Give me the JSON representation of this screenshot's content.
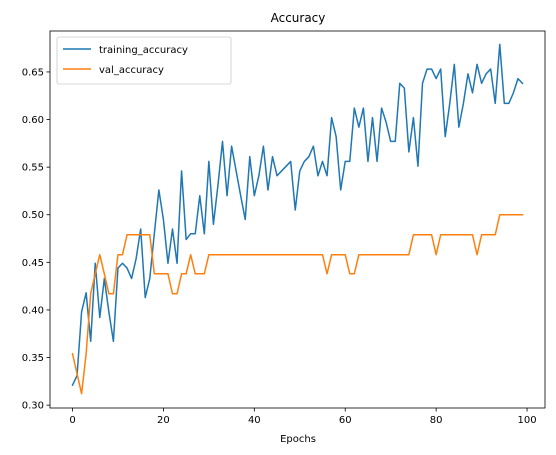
{
  "chart_data": {
    "type": "line",
    "title": "Accuracy",
    "xlabel": "Epochs",
    "ylabel": "",
    "xlim": [
      -4.95,
      103.95
    ],
    "ylim": [
      0.297,
      0.693
    ],
    "xticks": [
      0,
      20,
      40,
      60,
      80,
      100
    ],
    "xtick_labels": [
      "0",
      "20",
      "40",
      "60",
      "80",
      "100"
    ],
    "yticks": [
      0.3,
      0.35,
      0.4,
      0.45,
      0.5,
      0.55,
      0.6,
      0.65
    ],
    "ytick_labels": [
      "0.30",
      "0.35",
      "0.40",
      "0.45",
      "0.50",
      "0.55",
      "0.60",
      "0.65"
    ],
    "grid": false,
    "legend_position": "top-left",
    "series": [
      {
        "name": "training_accuracy",
        "color": "#1f77b4",
        "x": [
          0,
          1,
          2,
          3,
          4,
          5,
          6,
          7,
          8,
          9,
          10,
          11,
          12,
          13,
          14,
          15,
          16,
          17,
          18,
          19,
          20,
          21,
          22,
          23,
          24,
          25,
          26,
          27,
          28,
          29,
          30,
          31,
          32,
          33,
          34,
          35,
          36,
          37,
          38,
          39,
          40,
          41,
          42,
          43,
          44,
          45,
          46,
          47,
          48,
          49,
          50,
          51,
          52,
          53,
          54,
          55,
          56,
          57,
          58,
          59,
          60,
          61,
          62,
          63,
          64,
          65,
          66,
          67,
          68,
          69,
          70,
          71,
          72,
          73,
          74,
          75,
          76,
          77,
          78,
          79,
          80,
          81,
          82,
          83,
          84,
          85,
          86,
          87,
          88,
          89,
          90,
          91,
          92,
          93,
          94,
          95,
          96,
          97,
          98,
          99
        ],
        "values": [
          0.321,
          0.331,
          0.398,
          0.418,
          0.367,
          0.449,
          0.392,
          0.433,
          0.398,
          0.367,
          0.444,
          0.449,
          0.444,
          0.433,
          0.454,
          0.485,
          0.413,
          0.433,
          0.48,
          0.526,
          0.495,
          0.449,
          0.485,
          0.449,
          0.546,
          0.474,
          0.48,
          0.48,
          0.52,
          0.48,
          0.556,
          0.49,
          0.531,
          0.577,
          0.52,
          0.572,
          0.546,
          0.52,
          0.495,
          0.561,
          0.52,
          0.541,
          0.572,
          0.526,
          0.561,
          0.541,
          0.546,
          0.551,
          0.556,
          0.505,
          0.546,
          0.556,
          0.561,
          0.572,
          0.541,
          0.556,
          0.541,
          0.602,
          0.582,
          0.526,
          0.556,
          0.556,
          0.612,
          0.592,
          0.612,
          0.556,
          0.602,
          0.556,
          0.612,
          0.597,
          0.577,
          0.577,
          0.638,
          0.633,
          0.566,
          0.602,
          0.551,
          0.638,
          0.653,
          0.653,
          0.643,
          0.653,
          0.582,
          0.617,
          0.658,
          0.592,
          0.617,
          0.648,
          0.628,
          0.658,
          0.638,
          0.648,
          0.653,
          0.617,
          0.679,
          0.617,
          0.617,
          0.628,
          0.643,
          0.638
        ]
      },
      {
        "name": "val_accuracy",
        "color": "#ff7f0e",
        "x": [
          0,
          1,
          2,
          3,
          4,
          5,
          6,
          7,
          8,
          9,
          10,
          11,
          12,
          13,
          14,
          15,
          16,
          17,
          18,
          19,
          20,
          21,
          22,
          23,
          24,
          25,
          26,
          27,
          28,
          29,
          30,
          31,
          32,
          33,
          34,
          35,
          36,
          37,
          38,
          39,
          40,
          41,
          42,
          43,
          44,
          45,
          46,
          47,
          48,
          49,
          50,
          51,
          52,
          53,
          54,
          55,
          56,
          57,
          58,
          59,
          60,
          61,
          62,
          63,
          64,
          65,
          66,
          67,
          68,
          69,
          70,
          71,
          72,
          73,
          74,
          75,
          76,
          77,
          78,
          79,
          80,
          81,
          82,
          83,
          84,
          85,
          86,
          87,
          88,
          89,
          90,
          91,
          92,
          93,
          94,
          95,
          96,
          97,
          98,
          99
        ],
        "values": [
          0.354,
          0.333,
          0.312,
          0.354,
          0.417,
          0.438,
          0.458,
          0.438,
          0.417,
          0.417,
          0.458,
          0.458,
          0.479,
          0.479,
          0.479,
          0.479,
          0.479,
          0.479,
          0.438,
          0.438,
          0.438,
          0.438,
          0.417,
          0.417,
          0.438,
          0.438,
          0.458,
          0.438,
          0.438,
          0.438,
          0.458,
          0.458,
          0.458,
          0.458,
          0.458,
          0.458,
          0.458,
          0.458,
          0.458,
          0.458,
          0.458,
          0.458,
          0.458,
          0.458,
          0.458,
          0.458,
          0.458,
          0.458,
          0.458,
          0.458,
          0.458,
          0.458,
          0.458,
          0.458,
          0.458,
          0.458,
          0.438,
          0.458,
          0.458,
          0.458,
          0.458,
          0.438,
          0.438,
          0.458,
          0.458,
          0.458,
          0.458,
          0.458,
          0.458,
          0.458,
          0.458,
          0.458,
          0.458,
          0.458,
          0.458,
          0.479,
          0.479,
          0.479,
          0.479,
          0.479,
          0.458,
          0.479,
          0.479,
          0.479,
          0.479,
          0.479,
          0.479,
          0.479,
          0.479,
          0.458,
          0.479,
          0.479,
          0.479,
          0.479,
          0.5,
          0.5,
          0.5,
          0.5,
          0.5,
          0.5
        ]
      }
    ]
  }
}
